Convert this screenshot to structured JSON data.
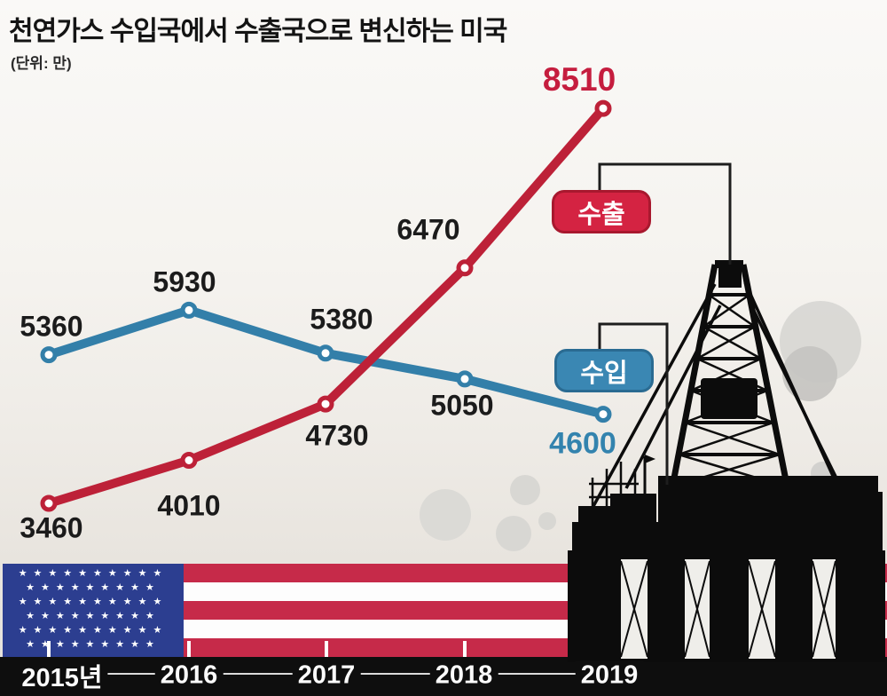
{
  "title": "천연가스 수입국에서 수출국으로 변신하는 미국",
  "unit_note": "(단위: 만)",
  "legend": {
    "export_label": "수출",
    "import_label": "수입"
  },
  "colors": {
    "export_line": "#bd2138",
    "import_line": "#337fa9",
    "export_badge": "#d42342",
    "import_badge": "#3a87b3",
    "axis_bar": "#0e0e0e",
    "flag_red": "#c62a49",
    "flag_blue": "#2c3e90",
    "leader_line": "#1d1d1d"
  },
  "chart_data": {
    "type": "line",
    "title": "천연가스 수입국에서 수출국으로 변신하는 미국",
    "unit": "(단위: 만)",
    "categories": [
      "2015년",
      "2016",
      "2017",
      "2018",
      "2019"
    ],
    "series": [
      {
        "name": "수입",
        "color": "#337fa9",
        "values": [
          5360,
          5930,
          5380,
          5050,
          4600
        ]
      },
      {
        "name": "수출",
        "color": "#bd2138",
        "values": [
          3460,
          4010,
          4730,
          6470,
          8510
        ]
      }
    ],
    "ylim": [
      3000,
      9000
    ],
    "grid": false,
    "legend_position": "inline-badges",
    "annotations": [
      "수출 badge connected to oil rig top",
      "수입 badge connected to rig deck"
    ]
  }
}
